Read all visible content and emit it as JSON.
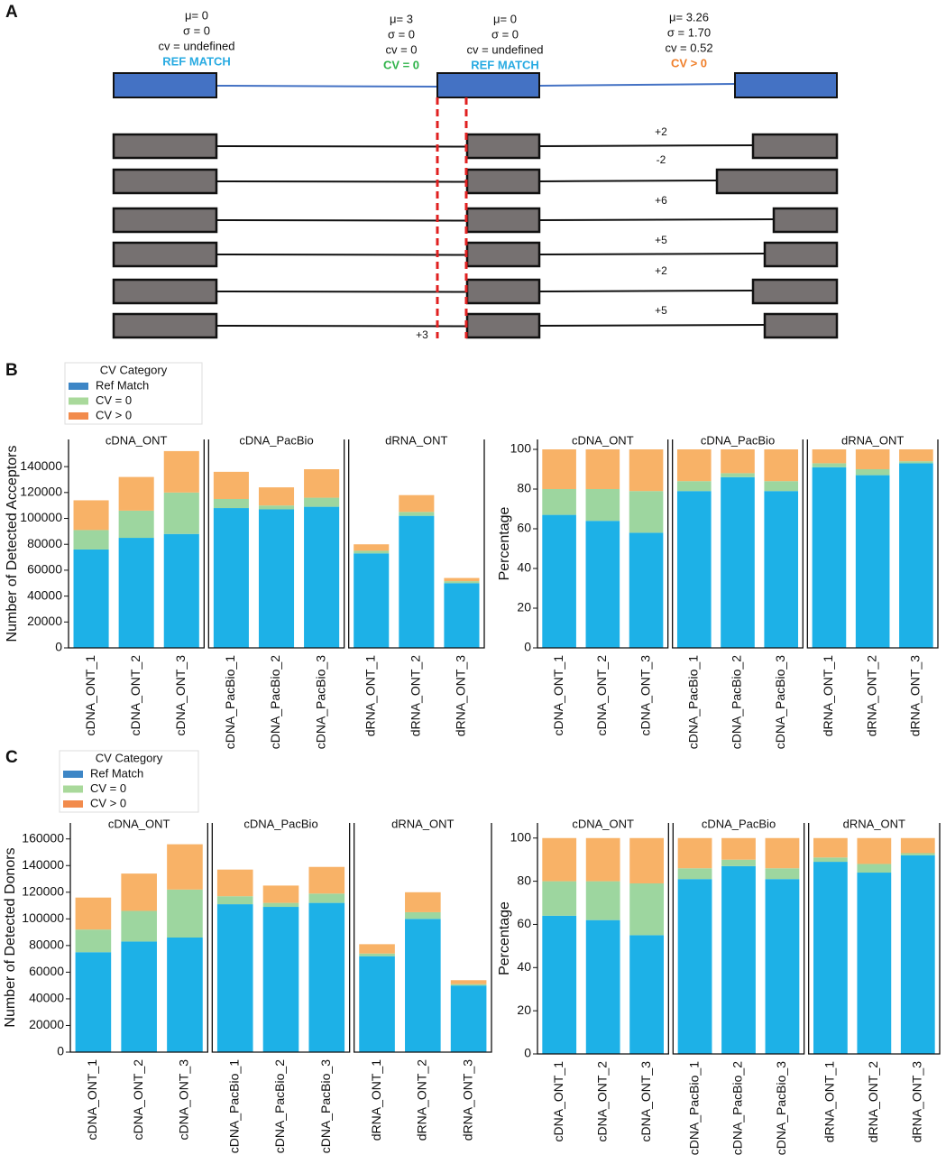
{
  "panel_labels": [
    "A",
    "B",
    "C"
  ],
  "diagram": {
    "annotations": [
      {
        "lines": [
          "μ= 0",
          "σ = 0",
          "cv = undefined"
        ],
        "status": "REF MATCH",
        "status_color": "#29abe2"
      },
      {
        "lines": [
          "μ= 3",
          "σ = 0",
          "cv = 0"
        ],
        "status": "CV = 0",
        "status_color": "#2fb34a"
      },
      {
        "lines": [
          "μ= 0",
          "σ = 0",
          "cv = undefined"
        ],
        "status": "REF MATCH",
        "status_color": "#29abe2"
      },
      {
        "lines": [
          "μ= 3.26",
          "σ = 1.70",
          "cv = 0.52"
        ],
        "status": "CV > 0",
        "status_color": "#f07f2a"
      }
    ],
    "offsets": [
      "+2",
      "-2",
      "+6",
      "+5",
      "+2",
      "+5"
    ],
    "shift_label": "+3"
  },
  "chart_data": [
    {
      "type": "bar",
      "stacked": true,
      "ylabel": "Number of Detected Acceptors",
      "facets": [
        "cDNA_ONT",
        "cDNA_PacBio",
        "dRNA_ONT"
      ],
      "categories": [
        "cDNA_ONT_1",
        "cDNA_ONT_2",
        "cDNA_ONT_3",
        "cDNA_PacBio_1",
        "cDNA_PacBio_2",
        "cDNA_PacBio_3",
        "dRNA_ONT_1",
        "dRNA_ONT_2",
        "dRNA_ONT_3"
      ],
      "series": [
        {
          "name": "Ref Match",
          "color": "#1db1e7",
          "values": [
            76000,
            85000,
            88000,
            108000,
            107000,
            109000,
            73000,
            102000,
            50000
          ]
        },
        {
          "name": "CV = 0",
          "color": "#9dd69f",
          "values": [
            15000,
            21000,
            32000,
            7000,
            3000,
            7000,
            2000,
            3000,
            1500
          ]
        },
        {
          "name": "CV > 0",
          "color": "#f8b267",
          "values": [
            23000,
            26000,
            32000,
            21000,
            14000,
            22000,
            5000,
            13000,
            2500
          ]
        }
      ],
      "legend": {
        "title": "CV Category",
        "colors": [
          "#3d86c6",
          "#a9d99b",
          "#f28b4c"
        ]
      },
      "ylim": [
        0,
        161000
      ],
      "yticks": [
        0,
        20000,
        40000,
        60000,
        80000,
        100000,
        120000,
        140000
      ]
    },
    {
      "type": "bar",
      "stacked": true,
      "ylabel": "Percentage",
      "facets": [
        "cDNA_ONT",
        "cDNA_PacBio",
        "dRNA_ONT"
      ],
      "categories": [
        "cDNA_ONT_1",
        "cDNA_ONT_2",
        "cDNA_ONT_3",
        "cDNA_PacBio_1",
        "cDNA_PacBio_2",
        "cDNA_PacBio_3",
        "dRNA_ONT_1",
        "dRNA_ONT_2",
        "dRNA_ONT_3"
      ],
      "series": [
        {
          "color": "#1db1e7",
          "values": [
            67,
            64,
            58,
            79,
            86,
            79,
            91,
            87,
            93
          ]
        },
        {
          "color": "#9dd69f",
          "values": [
            13,
            16,
            21,
            5,
            2,
            5,
            2,
            3,
            1
          ]
        },
        {
          "color": "#f8b267",
          "values": [
            20,
            20,
            21,
            16,
            12,
            16,
            7,
            10,
            6
          ]
        }
      ],
      "ylim": [
        0,
        105
      ],
      "yticks": [
        0,
        20,
        40,
        60,
        80,
        100
      ]
    },
    {
      "type": "bar",
      "stacked": true,
      "ylabel": "Number of Detected Donors",
      "facets": [
        "cDNA_ONT",
        "cDNA_PacBio",
        "dRNA_ONT"
      ],
      "categories": [
        "cDNA_ONT_1",
        "cDNA_ONT_2",
        "cDNA_ONT_3",
        "cDNA_PacBio_1",
        "cDNA_PacBio_2",
        "cDNA_PacBio_3",
        "dRNA_ONT_1",
        "dRNA_ONT_2",
        "dRNA_ONT_3"
      ],
      "series": [
        {
          "name": "Ref Match",
          "color": "#1db1e7",
          "values": [
            75000,
            83000,
            86000,
            111000,
            109000,
            112000,
            72000,
            100000,
            50000
          ]
        },
        {
          "name": "CV = 0",
          "color": "#9dd69f",
          "values": [
            17000,
            23000,
            36000,
            6000,
            3000,
            7000,
            2000,
            5000,
            1000
          ]
        },
        {
          "name": "CV > 0",
          "color": "#f8b267",
          "values": [
            24000,
            28000,
            34000,
            20000,
            13000,
            20000,
            7000,
            15000,
            3000
          ]
        }
      ],
      "legend": {
        "title": "CV Category",
        "colors": [
          "#3d86c6",
          "#a9d99b",
          "#f28b4c"
        ]
      },
      "ylim": [
        0,
        172000
      ],
      "yticks": [
        0,
        20000,
        40000,
        60000,
        80000,
        100000,
        120000,
        140000,
        160000
      ]
    },
    {
      "type": "bar",
      "stacked": true,
      "ylabel": "Percentage",
      "facets": [
        "cDNA_ONT",
        "cDNA_PacBio",
        "dRNA_ONT"
      ],
      "categories": [
        "cDNA_ONT_1",
        "cDNA_ONT_2",
        "cDNA_ONT_3",
        "cDNA_PacBio_1",
        "cDNA_PacBio_2",
        "cDNA_PacBio_3",
        "dRNA_ONT_1",
        "dRNA_ONT_2",
        "dRNA_ONT_3"
      ],
      "series": [
        {
          "color": "#1db1e7",
          "values": [
            64,
            62,
            55,
            81,
            87,
            81,
            89,
            84,
            92
          ]
        },
        {
          "color": "#9dd69f",
          "values": [
            16,
            18,
            24,
            5,
            3,
            5,
            2,
            4,
            1
          ]
        },
        {
          "color": "#f8b267",
          "values": [
            20,
            20,
            21,
            14,
            10,
            14,
            9,
            12,
            7
          ]
        }
      ],
      "ylim": [
        0,
        107
      ],
      "yticks": [
        0,
        20,
        40,
        60,
        80,
        100
      ]
    }
  ]
}
